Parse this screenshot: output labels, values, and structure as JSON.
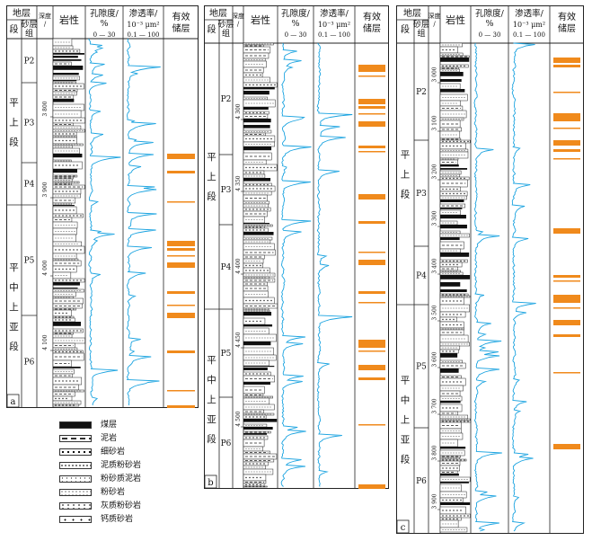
{
  "headers": {
    "stratum": "地层",
    "section": "段",
    "sand_group": "砂层组",
    "depth": "深度/m",
    "lithology": "岩性",
    "porosity_title": "孔隙度/",
    "porosity_unit": "%",
    "porosity_scale": "0 — 30",
    "perm_title": "渗透率/",
    "perm_unit": "10⁻³ μm²",
    "perm_scale": "0.1 — 100",
    "effective_title": "有效",
    "effective_title2": "储层"
  },
  "legend": [
    {
      "label": "煤层",
      "pattern": "coal"
    },
    {
      "label": "泥岩",
      "pattern": "mudstone"
    },
    {
      "label": "细砂岩",
      "pattern": "fine-sandstone"
    },
    {
      "label": "泥质粉砂岩",
      "pattern": "muddy-siltstone"
    },
    {
      "label": "粉砂质泥岩",
      "pattern": "silty-mudstone"
    },
    {
      "label": "粉砂岩",
      "pattern": "siltstone"
    },
    {
      "label": "灰质粉砂岩",
      "pattern": "calcareous-siltstone"
    },
    {
      "label": "钙质砂岩",
      "pattern": "calcareous-sandstone"
    }
  ],
  "colors": {
    "porosity": "#1aa3e0",
    "effective": "#f08a1c",
    "line": "#222222"
  },
  "panels": [
    {
      "id": "a",
      "label": "a",
      "sections": [
        {
          "name": "平上段",
          "chars": [
            "平",
            "上",
            "段"
          ],
          "groups": [
            "P2",
            "P3",
            "P4"
          ]
        },
        {
          "name": "平中上亚段",
          "chars": [
            "平",
            "中",
            "上",
            "亚",
            "段"
          ],
          "groups": [
            "P5",
            "P6"
          ]
        }
      ],
      "depth_ticks": [
        "3 800",
        "3 900",
        "4 000",
        "4 100"
      ]
    },
    {
      "id": "b",
      "label": "b",
      "sections": [
        {
          "name": "平上段",
          "chars": [
            "平",
            "上",
            "段"
          ],
          "groups": [
            "P2",
            "P3",
            "P4"
          ]
        },
        {
          "name": "平中上亚段",
          "chars": [
            "平",
            "中",
            "上",
            "亚",
            "段"
          ],
          "groups": [
            "P5",
            "P6"
          ]
        }
      ],
      "depth_ticks": [
        "4 300",
        "4 350",
        "4 400",
        "4 450",
        "4 500"
      ]
    },
    {
      "id": "c",
      "label": "c",
      "sections": [
        {
          "name": "平上段",
          "chars": [
            "平",
            "上",
            "段"
          ],
          "groups": [
            "P2",
            "P3",
            "P4"
          ]
        },
        {
          "name": "平中上亚段",
          "chars": [
            "平",
            "中",
            "上",
            "亚",
            "段"
          ],
          "groups": [
            "P5",
            "P6"
          ]
        }
      ],
      "depth_ticks": [
        "3 000",
        "3 100",
        "3 200",
        "3 300",
        "3 400",
        "3 500",
        "3 600",
        "3 700",
        "3 800",
        "3 900"
      ]
    }
  ]
}
